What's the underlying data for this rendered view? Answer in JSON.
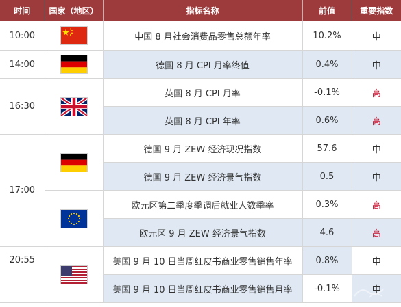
{
  "header": {
    "time": "时间",
    "country": "国家（地区）",
    "indicator": "指标名称",
    "previous": "前值",
    "importance": "重要指数"
  },
  "rows": [
    {
      "indicator": "中国 8 月社会消费品零售总额年率",
      "previous": "10.2%",
      "importance": "中"
    },
    {
      "indicator": "德国 8 月 CPI 月率终值",
      "previous": "0.4%",
      "importance": "中"
    },
    {
      "indicator": "英国 8 月 CPI 月率",
      "previous": "-0.1%",
      "importance": "高"
    },
    {
      "indicator": "英国 8 月 CPI 年率",
      "previous": "0.6%",
      "importance": "高"
    },
    {
      "indicator": "德国 9 月 ZEW 经济现况指数",
      "previous": "57.6",
      "importance": "中"
    },
    {
      "indicator": "德国 9 月 ZEW 经济景气指数",
      "previous": "0.5",
      "importance": "中"
    },
    {
      "indicator": "欧元区第二季度季调后就业人数季率",
      "previous": "0.3%",
      "importance": "高"
    },
    {
      "indicator": "欧元区 9 月 ZEW 经济景气指数",
      "previous": "4.6",
      "importance": "高"
    },
    {
      "indicator": "美国 9 月 10 日当周红皮书商业零售销售年率",
      "previous": "0.8%",
      "importance": "中"
    },
    {
      "indicator": "美国 9 月 10 日当周红皮书商业零售销售月率",
      "previous": "-0.1%",
      "importance": "中"
    }
  ],
  "times": [
    "10:00",
    "14:00",
    "16:30",
    "17:00",
    "20:55"
  ],
  "flags": [
    "china-flag",
    "germany-flag",
    "uk-flag",
    "germany-flag",
    "eu-flag",
    "usa-flag"
  ],
  "colors": {
    "header_bg": "#9c3a3c",
    "row_alt_bg": "#dfe8f3",
    "high_importance": "#c8102e"
  }
}
